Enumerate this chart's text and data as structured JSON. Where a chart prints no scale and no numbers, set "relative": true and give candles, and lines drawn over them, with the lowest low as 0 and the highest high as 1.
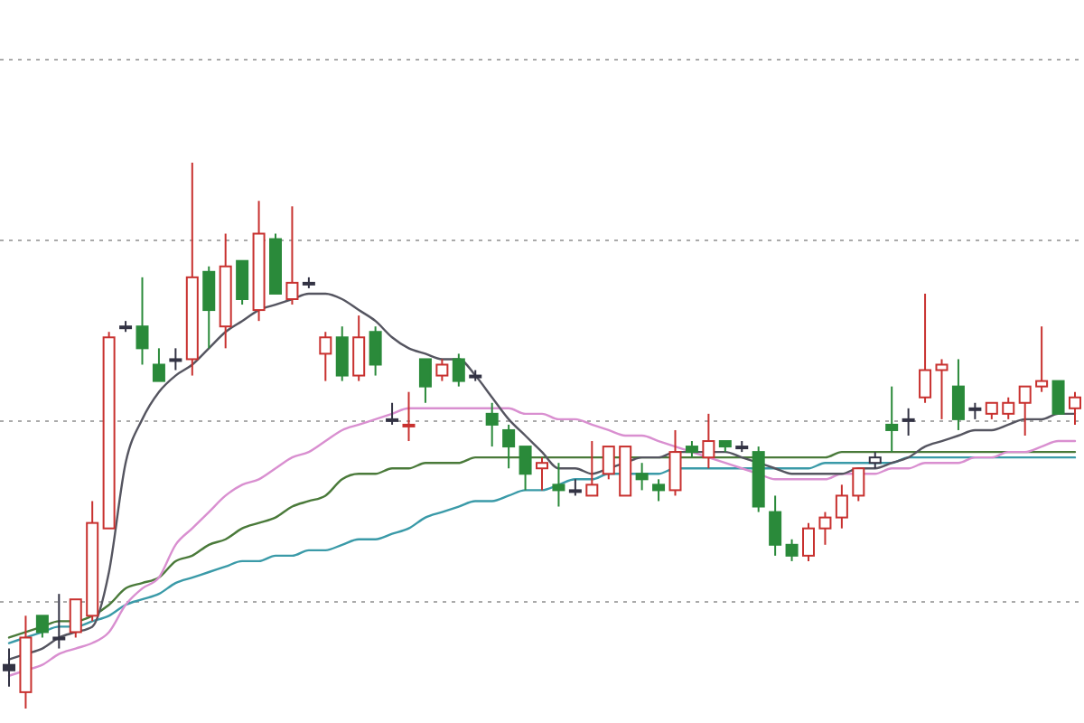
{
  "chart_data": {
    "type": "candlestick",
    "relative": true,
    "grid": "y",
    "categories": [
      null,
      null,
      null,
      null,
      null,
      null,
      null,
      null,
      null,
      null,
      null,
      null,
      null,
      null,
      null,
      null,
      null,
      null,
      null,
      null,
      null,
      null,
      null,
      null,
      null,
      null,
      null,
      null,
      null,
      null,
      null,
      null,
      null,
      null,
      null,
      null,
      null,
      null,
      null,
      null,
      null,
      null,
      null,
      null,
      null,
      null,
      null,
      null,
      null,
      null,
      null,
      null,
      null,
      null,
      null,
      null,
      null,
      null,
      null,
      null,
      null,
      null,
      null,
      null,
      null
    ],
    "ohlc": [
      [
        0.08,
        0.11,
        0.04,
        0.07
      ],
      [
        0.03,
        0.17,
        0,
        0.13
      ],
      [
        0.17,
        0.17,
        0.13,
        0.14
      ],
      [
        0.13,
        0.21,
        0.11,
        0.13
      ],
      [
        0.14,
        0.2,
        0.13,
        0.2
      ],
      [
        0.17,
        0.38,
        0.16,
        0.34
      ],
      [
        0.33,
        0.69,
        0.33,
        0.68
      ],
      [
        0.7,
        0.71,
        0.69,
        0.7
      ],
      [
        0.7,
        0.79,
        0.63,
        0.66
      ],
      [
        0.63,
        0.66,
        0.6,
        0.6
      ],
      [
        0.64,
        0.66,
        0.62,
        0.64
      ],
      [
        0.64,
        1,
        0.61,
        0.79
      ],
      [
        0.8,
        0.81,
        0.66,
        0.73
      ],
      [
        0.7,
        0.87,
        0.66,
        0.81
      ],
      [
        0.82,
        0.82,
        0.74,
        0.75
      ],
      [
        0.73,
        0.93,
        0.71,
        0.87
      ],
      [
        0.86,
        0.87,
        0.76,
        0.76
      ],
      [
        0.75,
        0.92,
        0.74,
        0.78
      ],
      [
        0.78,
        0.79,
        0.77,
        0.78
      ],
      [
        0.65,
        0.69,
        0.6,
        0.68
      ],
      [
        0.68,
        0.7,
        0.6,
        0.61
      ],
      [
        0.61,
        0.72,
        0.6,
        0.68
      ],
      [
        0.69,
        0.7,
        0.61,
        0.63
      ],
      [
        0.53,
        0.56,
        0.52,
        0.53
      ],
      [
        0.52,
        0.58,
        0.49,
        0.52
      ],
      [
        0.64,
        0.64,
        0.56,
        0.59
      ],
      [
        0.61,
        0.64,
        0.6,
        0.63
      ],
      [
        0.64,
        0.65,
        0.59,
        0.6
      ],
      [
        0.61,
        0.62,
        0.6,
        0.61
      ],
      [
        0.54,
        0.56,
        0.48,
        0.52
      ],
      [
        0.51,
        0.52,
        0.44,
        0.48
      ],
      [
        0.48,
        0.48,
        0.4,
        0.43
      ],
      [
        0.44,
        0.46,
        0.4,
        0.45
      ],
      [
        0.41,
        0.45,
        0.37,
        0.4
      ],
      [
        0.4,
        0.42,
        0.39,
        0.4
      ],
      [
        0.39,
        0.49,
        0.39,
        0.41
      ],
      [
        0.43,
        0.48,
        0.42,
        0.48
      ],
      [
        0.39,
        0.48,
        0.39,
        0.48
      ],
      [
        0.43,
        0.45,
        0.4,
        0.42
      ],
      [
        0.41,
        0.42,
        0.38,
        0.4
      ],
      [
        0.4,
        0.51,
        0.39,
        0.47
      ],
      [
        0.48,
        0.49,
        0.46,
        0.47
      ],
      [
        0.46,
        0.54,
        0.44,
        0.49
      ],
      [
        0.49,
        0.49,
        0.47,
        0.48
      ],
      [
        0.48,
        0.49,
        0.47,
        0.48
      ],
      [
        0.47,
        0.48,
        0.36,
        0.37
      ],
      [
        0.36,
        0.39,
        0.28,
        0.3
      ],
      [
        0.3,
        0.31,
        0.27,
        0.28
      ],
      [
        0.28,
        0.34,
        0.27,
        0.33
      ],
      [
        0.33,
        0.36,
        0.3,
        0.35
      ],
      [
        0.35,
        0.41,
        0.33,
        0.39
      ],
      [
        0.39,
        0.44,
        0.38,
        0.44
      ],
      [
        0.45,
        0.47,
        0.44,
        0.46
      ],
      [
        0.52,
        0.59,
        0.47,
        0.51
      ],
      [
        0.53,
        0.55,
        0.5,
        0.53
      ],
      [
        0.57,
        0.76,
        0.56,
        0.62
      ],
      [
        0.62,
        0.64,
        0.53,
        0.63
      ],
      [
        0.59,
        0.64,
        0.51,
        0.53
      ],
      [
        0.55,
        0.56,
        0.53,
        0.55
      ],
      [
        0.54,
        0.56,
        0.53,
        0.56
      ],
      [
        0.54,
        0.57,
        0.53,
        0.56
      ],
      [
        0.56,
        0.59,
        0.5,
        0.59
      ],
      [
        0.59,
        0.7,
        0.58,
        0.6
      ],
      [
        0.6,
        0.6,
        0.54,
        0.54
      ],
      [
        0.55,
        0.58,
        0.52,
        0.57
      ]
    ],
    "colors": [
      "#333344",
      "#c8312f",
      "#2a8a3a",
      "#333344",
      "#c8312f",
      "#c8312f",
      "#c8312f",
      "#333344",
      "#2a8a3a",
      "#2a8a3a",
      "#333344",
      "#c8312f",
      "#2a8a3a",
      "#c8312f",
      "#2a8a3a",
      "#c8312f",
      "#2a8a3a",
      "#c8312f",
      "#333344",
      "#c8312f",
      "#2a8a3a",
      "#c8312f",
      "#2a8a3a",
      "#333344",
      "#c8312f",
      "#2a8a3a",
      "#c8312f",
      "#2a8a3a",
      "#333344",
      "#2a8a3a",
      "#2a8a3a",
      "#2a8a3a",
      "#c8312f",
      "#2a8a3a",
      "#333344",
      "#c8312f",
      "#c8312f",
      "#c8312f",
      "#2a8a3a",
      "#2a8a3a",
      "#c8312f",
      "#2a8a3a",
      "#c8312f",
      "#2a8a3a",
      "#333344",
      "#2a8a3a",
      "#2a8a3a",
      "#2a8a3a",
      "#c8312f",
      "#c8312f",
      "#c8312f",
      "#c8312f",
      "#333344",
      "#2a8a3a",
      "#333344",
      "#c8312f",
      "#c8312f",
      "#2a8a3a",
      "#333344",
      "#c8312f",
      "#c8312f",
      "#c8312f",
      "#c8312f",
      "#2a8a3a",
      "#c8312f"
    ],
    "series": [
      {
        "type": "line",
        "color": "#3a9aa8",
        "values": [
          0.12,
          0.13,
          0.14,
          0.15,
          0.15,
          0.16,
          0.17,
          0.19,
          0.2,
          0.21,
          0.23,
          0.24,
          0.25,
          0.26,
          0.27,
          0.27,
          0.28,
          0.28,
          0.29,
          0.29,
          0.3,
          0.31,
          0.31,
          0.32,
          0.33,
          0.35,
          0.36,
          0.37,
          0.38,
          0.38,
          0.39,
          0.4,
          0.4,
          0.41,
          0.42,
          0.42,
          0.43,
          0.43,
          0.43,
          0.43,
          0.44,
          0.44,
          0.44,
          0.44,
          0.44,
          0.44,
          0.44,
          0.44,
          0.44,
          0.45,
          0.45,
          0.45,
          0.45,
          0.45,
          0.46,
          0.46,
          0.46,
          0.46,
          0.46,
          0.46,
          0.46,
          0.46,
          0.46,
          0.46,
          0.46
        ]
      },
      {
        "type": "line",
        "color": "#4a7a3a",
        "values": [
          0.13,
          0.14,
          0.15,
          0.16,
          0.16,
          0.17,
          0.19,
          0.22,
          0.23,
          0.24,
          0.27,
          0.28,
          0.3,
          0.31,
          0.33,
          0.34,
          0.35,
          0.37,
          0.38,
          0.39,
          0.42,
          0.43,
          0.43,
          0.44,
          0.44,
          0.45,
          0.45,
          0.45,
          0.46,
          0.46,
          0.46,
          0.46,
          0.46,
          0.46,
          0.46,
          0.46,
          0.46,
          0.46,
          0.46,
          0.46,
          0.46,
          0.46,
          0.46,
          0.46,
          0.46,
          0.46,
          0.46,
          0.46,
          0.46,
          0.46,
          0.47,
          0.47,
          0.47,
          0.47,
          0.47,
          0.47,
          0.47,
          0.47,
          0.47,
          0.47,
          0.47,
          0.47,
          0.47,
          0.47,
          0.47
        ]
      },
      {
        "type": "line",
        "color": "#d98fd0",
        "values": [
          0.06,
          0.07,
          0.08,
          0.1,
          0.11,
          0.12,
          0.14,
          0.19,
          0.22,
          0.24,
          0.3,
          0.33,
          0.36,
          0.39,
          0.41,
          0.42,
          0.44,
          0.46,
          0.47,
          0.49,
          0.51,
          0.52,
          0.53,
          0.54,
          0.55,
          0.55,
          0.55,
          0.55,
          0.55,
          0.55,
          0.55,
          0.54,
          0.54,
          0.53,
          0.53,
          0.52,
          0.51,
          0.5,
          0.5,
          0.49,
          0.48,
          0.47,
          0.46,
          0.45,
          0.44,
          0.43,
          0.42,
          0.42,
          0.42,
          0.42,
          0.43,
          0.43,
          0.43,
          0.44,
          0.44,
          0.45,
          0.45,
          0.45,
          0.46,
          0.46,
          0.47,
          0.47,
          0.48,
          0.49,
          0.49
        ]
      },
      {
        "type": "line",
        "color": "#555560",
        "values": [
          0.09,
          0.1,
          0.11,
          0.13,
          0.14,
          0.15,
          0.25,
          0.45,
          0.53,
          0.58,
          0.61,
          0.63,
          0.66,
          0.69,
          0.71,
          0.73,
          0.74,
          0.75,
          0.76,
          0.76,
          0.75,
          0.73,
          0.71,
          0.68,
          0.66,
          0.65,
          0.64,
          0.64,
          0.61,
          0.57,
          0.53,
          0.5,
          0.47,
          0.44,
          0.44,
          0.43,
          0.44,
          0.45,
          0.46,
          0.46,
          0.47,
          0.47,
          0.47,
          0.47,
          0.46,
          0.45,
          0.44,
          0.43,
          0.43,
          0.43,
          0.43,
          0.44,
          0.44,
          0.45,
          0.46,
          0.48,
          0.49,
          0.5,
          0.51,
          0.51,
          0.52,
          0.53,
          0.53,
          0.54,
          0.54
        ]
      }
    ]
  }
}
